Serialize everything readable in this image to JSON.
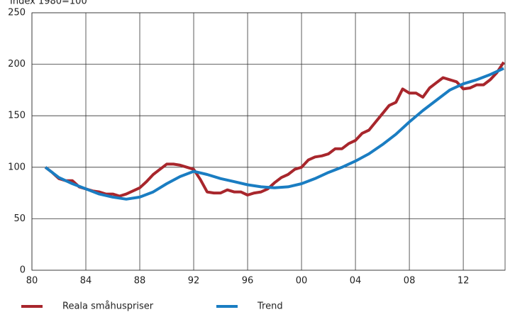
{
  "chart_data": {
    "type": "line",
    "y_axis_label": "Index 1980=100",
    "xlim": [
      1980,
      2015.1
    ],
    "xticks": [
      {
        "value": 1980,
        "label": "80"
      },
      {
        "value": 1984,
        "label": "84"
      },
      {
        "value": 1988,
        "label": "88"
      },
      {
        "value": 1992,
        "label": "92"
      },
      {
        "value": 1996,
        "label": "96"
      },
      {
        "value": 2000,
        "label": "00"
      },
      {
        "value": 2004,
        "label": "04"
      },
      {
        "value": 2008,
        "label": "08"
      },
      {
        "value": 2012,
        "label": "12"
      }
    ],
    "ylim": [
      0,
      250
    ],
    "yticks": [
      0,
      50,
      100,
      150,
      200,
      250
    ],
    "grid": true,
    "legend": "bottom",
    "series": [
      {
        "name": "Reala småhuspriser",
        "color": "#a8262c",
        "x": [
          1981,
          1981.5,
          1982,
          1982.5,
          1983,
          1983.5,
          1984,
          1984.5,
          1985,
          1985.5,
          1986,
          1986.5,
          1987,
          1987.5,
          1988,
          1988.5,
          1989,
          1989.5,
          1990,
          1990.5,
          1991,
          1991.5,
          1992,
          1992.5,
          1993,
          1993.5,
          1994,
          1994.5,
          1995,
          1995.5,
          1996,
          1996.5,
          1997,
          1997.5,
          1998,
          1998.5,
          1999,
          1999.5,
          2000,
          2000.5,
          2001,
          2001.5,
          2002,
          2002.5,
          2003,
          2003.5,
          2004,
          2004.5,
          2005,
          2005.5,
          2006,
          2006.5,
          2007,
          2007.5,
          2008,
          2008.5,
          2009,
          2009.5,
          2010,
          2010.5,
          2011,
          2011.5,
          2012,
          2012.5,
          2013,
          2013.5,
          2014,
          2014.5,
          2015
        ],
        "values": [
          100,
          95,
          89,
          87,
          87,
          81,
          79,
          77,
          76,
          74,
          74,
          72,
          74,
          77,
          80,
          86,
          93,
          98,
          103,
          103,
          102,
          100,
          98,
          88,
          76,
          75,
          75,
          78,
          76,
          76,
          73,
          75,
          76,
          79,
          85,
          90,
          93,
          98,
          100,
          107,
          110,
          111,
          113,
          118,
          118,
          123,
          126,
          133,
          136,
          144,
          152,
          160,
          163,
          176,
          172,
          172,
          168,
          177,
          182,
          187,
          185,
          183,
          176,
          177,
          180,
          180,
          185,
          192,
          202
        ]
      },
      {
        "name": "Trend",
        "color": "#1a7dc2",
        "x": [
          1981,
          1982,
          1983,
          1984,
          1985,
          1986,
          1987,
          1988,
          1989,
          1990,
          1991,
          1992,
          1993,
          1994,
          1995,
          1996,
          1997,
          1998,
          1999,
          2000,
          2001,
          2002,
          2003,
          2004,
          2005,
          2006,
          2007,
          2008,
          2009,
          2010,
          2011,
          2012,
          2013,
          2014,
          2015
        ],
        "values": [
          100,
          90,
          84,
          79,
          74,
          71,
          69,
          71,
          76,
          84,
          91,
          96,
          93,
          89,
          86,
          83,
          81,
          80,
          81,
          84,
          89,
          95,
          100,
          106,
          113,
          122,
          132,
          144,
          155,
          165,
          175,
          181,
          185,
          190,
          196
        ]
      }
    ]
  }
}
